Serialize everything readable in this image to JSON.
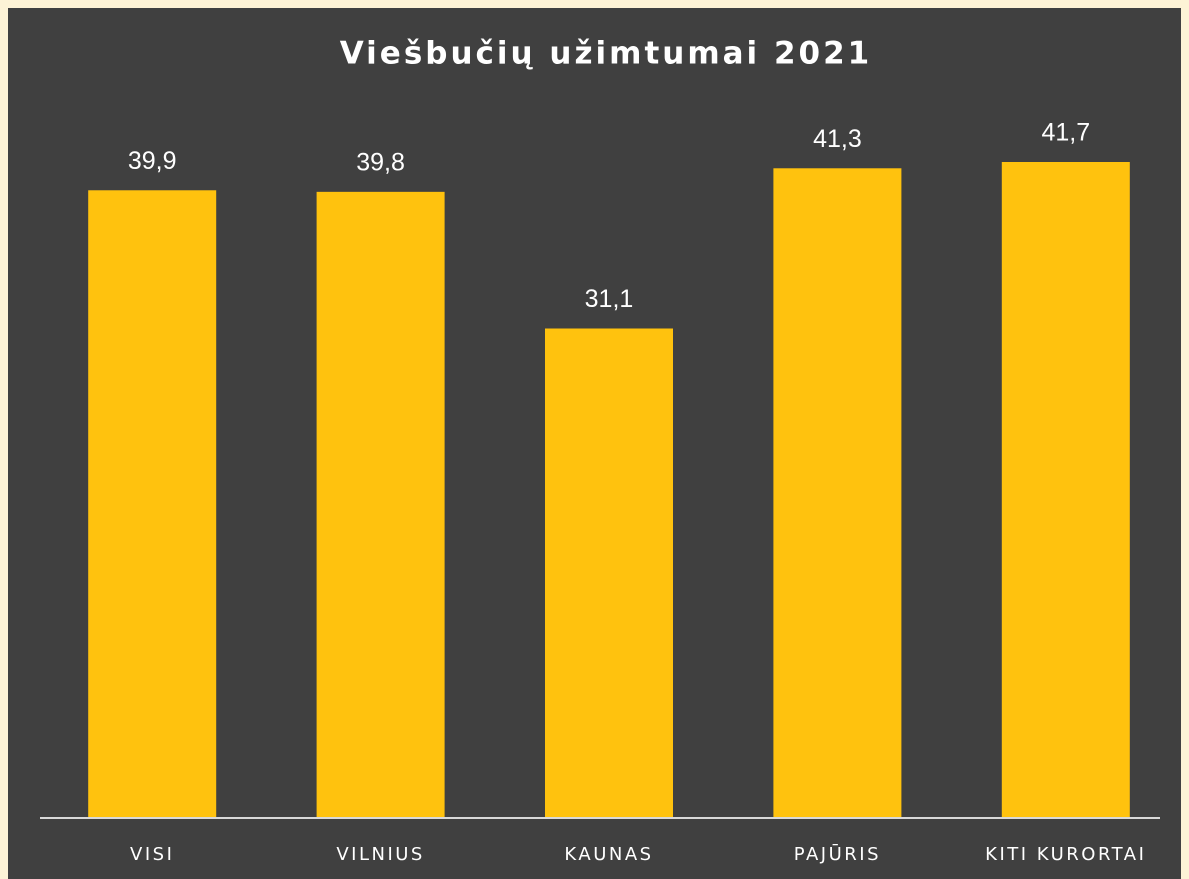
{
  "chart_data": {
    "type": "bar",
    "title": "Viešbučių užimtumai 2021",
    "categories": [
      "VISI",
      "VILNIUS",
      "KAUNAS",
      "PAJŪRIS",
      "KITI KURORTAI"
    ],
    "values": [
      39.9,
      39.8,
      31.1,
      41.3,
      41.7
    ],
    "value_labels": [
      "39,9",
      "39,8",
      "31,1",
      "41,3",
      "41,7"
    ],
    "color": "#ffc20e"
  }
}
